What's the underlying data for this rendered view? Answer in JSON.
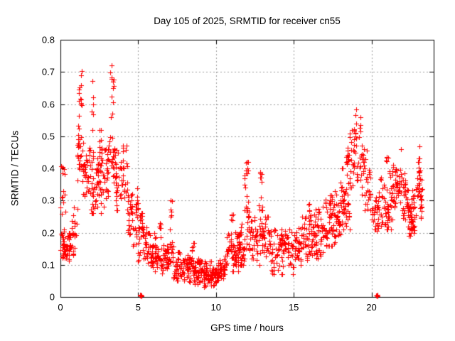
{
  "chart_data": {
    "type": "scatter",
    "title": "Day 105 of 2025, SRMTID for receiver cn55",
    "xlabel": "GPS time / hours",
    "ylabel": "SRMTID / TECUs",
    "xlim": [
      0,
      24
    ],
    "ylim": [
      0,
      0.8
    ],
    "xticks": [
      0,
      5,
      10,
      15,
      20
    ],
    "xtick_labels": [
      "0",
      "5",
      "10",
      "15",
      "20"
    ],
    "yticks": [
      0,
      0.1,
      0.2,
      0.3,
      0.4,
      0.5,
      0.6,
      0.7,
      0.8
    ],
    "ytick_labels": [
      "0",
      "0.1",
      "0.2",
      "0.3",
      "0.4",
      "0.5",
      "0.6",
      "0.7",
      "0.8"
    ],
    "grid": true,
    "legend_position": "none",
    "marker": "plus",
    "marker_color": "#ff0000",
    "grid_color": "#9c9c9c",
    "border_color": "#000000",
    "background_color": "#ffffff",
    "seed": 11,
    "clusters_schema": [
      "t_start_hours",
      "t_end_hours",
      "count",
      "y_min_tecus",
      "y_max_tecus"
    ],
    "clusters": [
      [
        0.0,
        0.35,
        30,
        0.1,
        0.21
      ],
      [
        0.0,
        0.3,
        8,
        0.25,
        0.34
      ],
      [
        0.05,
        0.3,
        5,
        0.37,
        0.42
      ],
      [
        0.35,
        0.75,
        30,
        0.1,
        0.2
      ],
      [
        0.75,
        1.1,
        20,
        0.13,
        0.3
      ],
      [
        1.1,
        1.45,
        30,
        0.35,
        0.56
      ],
      [
        1.15,
        1.4,
        12,
        0.56,
        0.7
      ],
      [
        1.45,
        1.8,
        25,
        0.28,
        0.48
      ],
      [
        1.8,
        2.2,
        30,
        0.26,
        0.5
      ],
      [
        1.95,
        2.15,
        6,
        0.52,
        0.64
      ],
      [
        2.2,
        2.65,
        40,
        0.26,
        0.45
      ],
      [
        2.45,
        2.6,
        6,
        0.45,
        0.52
      ],
      [
        2.65,
        3.1,
        35,
        0.28,
        0.48
      ],
      [
        3.1,
        3.45,
        20,
        0.35,
        0.6
      ],
      [
        3.2,
        3.45,
        8,
        0.6,
        0.72
      ],
      [
        3.45,
        4.3,
        60,
        0.27,
        0.47
      ],
      [
        4.3,
        5.0,
        50,
        0.16,
        0.36
      ],
      [
        5.0,
        5.55,
        45,
        0.1,
        0.26
      ],
      [
        5.1,
        5.2,
        7,
        0.0,
        0.012
      ],
      [
        5.55,
        6.5,
        65,
        0.08,
        0.2
      ],
      [
        6.3,
        6.45,
        6,
        0.2,
        0.24
      ],
      [
        6.5,
        7.25,
        50,
        0.07,
        0.17
      ],
      [
        7.0,
        7.2,
        8,
        0.21,
        0.3
      ],
      [
        7.25,
        8.1,
        60,
        0.05,
        0.14
      ],
      [
        8.1,
        9.0,
        70,
        0.04,
        0.13
      ],
      [
        8.45,
        8.6,
        6,
        0.13,
        0.17
      ],
      [
        9.0,
        10.05,
        85,
        0.03,
        0.11
      ],
      [
        10.05,
        10.6,
        50,
        0.04,
        0.12
      ],
      [
        10.6,
        11.45,
        65,
        0.08,
        0.22
      ],
      [
        10.95,
        11.1,
        6,
        0.22,
        0.26
      ],
      [
        11.45,
        11.85,
        40,
        0.1,
        0.25
      ],
      [
        11.85,
        12.1,
        28,
        0.15,
        0.42
      ],
      [
        12.1,
        12.55,
        30,
        0.12,
        0.3
      ],
      [
        12.75,
        13.0,
        12,
        0.27,
        0.4
      ],
      [
        12.55,
        13.55,
        55,
        0.1,
        0.25
      ],
      [
        13.55,
        15.0,
        90,
        0.07,
        0.21
      ],
      [
        15.0,
        16.05,
        70,
        0.1,
        0.25
      ],
      [
        15.95,
        16.1,
        5,
        0.25,
        0.29
      ],
      [
        16.05,
        17.0,
        70,
        0.12,
        0.28
      ],
      [
        17.0,
        18.0,
        80,
        0.16,
        0.33
      ],
      [
        18.0,
        18.6,
        50,
        0.21,
        0.4
      ],
      [
        18.4,
        18.6,
        14,
        0.4,
        0.52
      ],
      [
        18.6,
        19.3,
        45,
        0.34,
        0.56
      ],
      [
        19.3,
        20.0,
        45,
        0.27,
        0.47
      ],
      [
        20.0,
        20.45,
        30,
        0.19,
        0.33
      ],
      [
        20.28,
        20.42,
        2,
        0.0,
        0.008
      ],
      [
        20.45,
        21.25,
        50,
        0.21,
        0.38
      ],
      [
        20.95,
        21.15,
        8,
        0.38,
        0.46
      ],
      [
        21.25,
        22.25,
        75,
        0.24,
        0.41
      ],
      [
        22.25,
        22.85,
        60,
        0.19,
        0.34
      ],
      [
        22.85,
        23.25,
        40,
        0.24,
        0.43
      ]
    ],
    "outliers_schema": [
      "t_hours",
      "y_tecus"
    ],
    "outliers": [
      [
        3.29,
        0.72
      ],
      [
        1.37,
        0.703
      ],
      [
        1.33,
        0.69
      ],
      [
        2.05,
        0.672
      ],
      [
        3.38,
        0.67
      ],
      [
        19.0,
        0.583
      ],
      [
        18.97,
        0.565
      ],
      [
        11.93,
        0.418
      ],
      [
        23.07,
        0.468
      ],
      [
        21.9,
        0.46
      ],
      [
        12.0,
        0.4
      ],
      [
        0.15,
        0.405
      ],
      [
        5.15,
        0.004
      ],
      [
        20.32,
        0.004
      ],
      [
        20.4,
        0.003
      ]
    ]
  }
}
